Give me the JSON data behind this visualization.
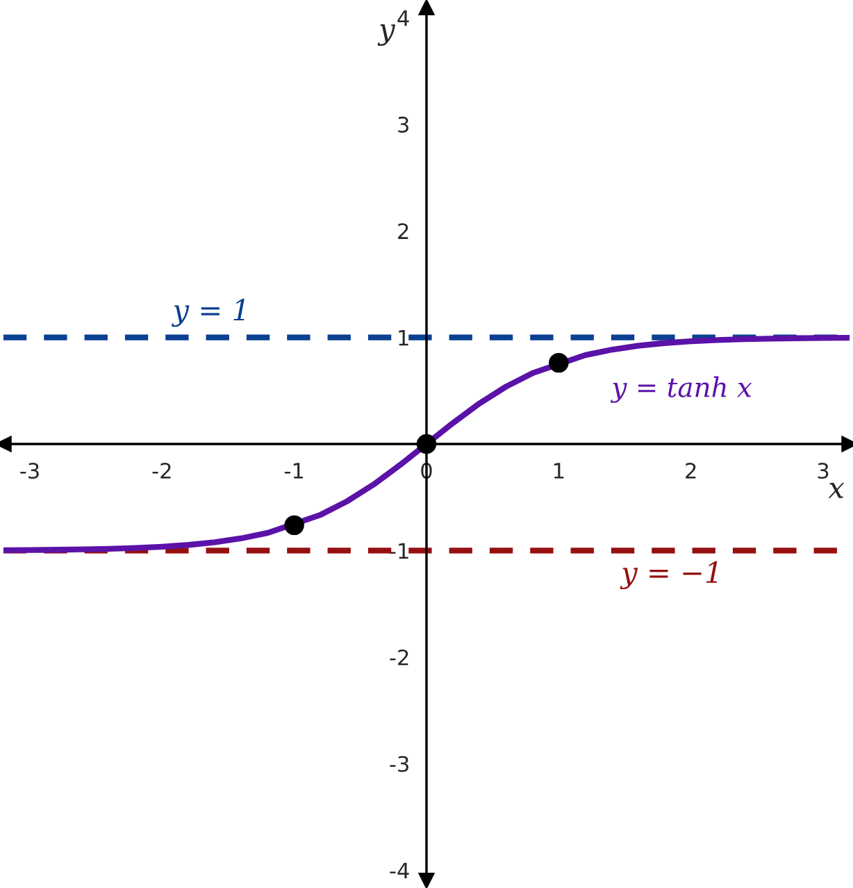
{
  "chart_data": {
    "type": "line",
    "xlabel": "x",
    "ylabel": "y",
    "x": [
      -3.2,
      -3.0,
      -2.8,
      -2.6,
      -2.4,
      -2.2,
      -2.0,
      -1.8,
      -1.6,
      -1.4,
      -1.2,
      -0.8,
      -0.6,
      -0.4,
      -0.2,
      0,
      0.2,
      0.4,
      0.6,
      0.8,
      1.2,
      1.4,
      1.6,
      1.8,
      2.0,
      2.2,
      2.4,
      2.6,
      2.8,
      3.0,
      3.2
    ],
    "series": [
      {
        "name": "y = tanh x",
        "color": "#5b12a8",
        "values": [
          -0.997,
          -0.995,
          -0.993,
          -0.989,
          -0.984,
          -0.976,
          -0.964,
          -0.947,
          -0.922,
          -0.885,
          -0.834,
          -0.664,
          -0.537,
          -0.38,
          -0.197,
          0,
          0.197,
          0.38,
          0.537,
          0.664,
          0.834,
          0.885,
          0.922,
          0.947,
          0.964,
          0.976,
          0.984,
          0.989,
          0.993,
          0.995,
          0.997
        ]
      },
      {
        "type": "scatter",
        "color": "#000000",
        "marker": "circle",
        "x": [
          -1,
          0,
          1
        ],
        "values": [
          -0.762,
          0,
          0.762
        ]
      }
    ],
    "ref_lines": [
      {
        "axis": "y",
        "value": 1,
        "label": "y = 1",
        "color": "#0a3f91",
        "line_style": "dashed"
      },
      {
        "axis": "y",
        "value": -1,
        "label": "y = −1",
        "color": "#961010",
        "line_style": "dashed"
      }
    ],
    "xlim": [
      -3.2,
      3.2
    ],
    "ylim": [
      -4.1,
      4.1
    ],
    "xticks": [
      -3,
      -2,
      -1,
      0,
      1,
      2,
      3
    ],
    "yticks": [
      -4,
      -3,
      -2,
      -1,
      1,
      2,
      3,
      4
    ],
    "grid": false,
    "legend": false
  }
}
